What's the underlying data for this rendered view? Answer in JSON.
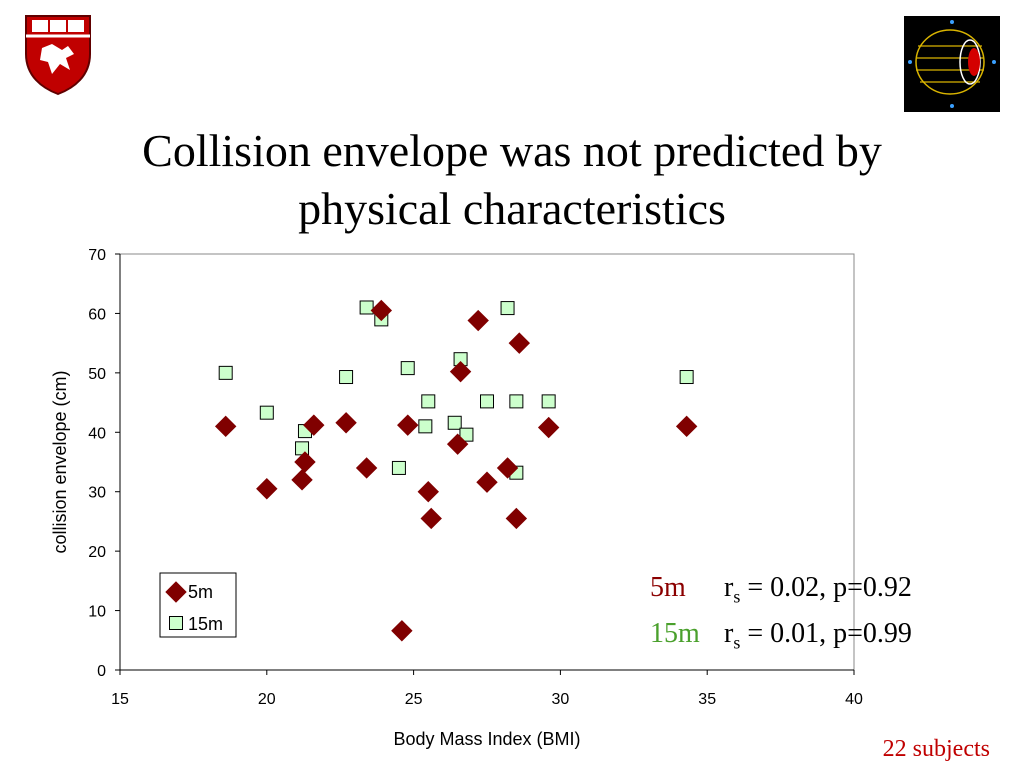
{
  "slide": {
    "title_line1": "Collision envelope was not predicted by",
    "title_line2": "physical characteristics",
    "footnote": "22 subjects",
    "footnote_color": "#c00000"
  },
  "logos": {
    "left": "shield-logo",
    "right": "globe-schematic-logo"
  },
  "stats": {
    "row1": {
      "tag": "5m",
      "tag_color": "#8b0000",
      "r": "r",
      "sub": "s",
      "text": " = 0.02, p=0.92"
    },
    "row2": {
      "tag": "15m",
      "tag_color": "#4aa02c",
      "r": "r",
      "sub": "s",
      "text": " = 0.01, p=0.99"
    }
  },
  "chart_data": {
    "type": "scatter",
    "xlabel": "Body Mass Index (BMI)",
    "ylabel": "collision envelope (cm)",
    "xlim": [
      15,
      40
    ],
    "ylim": [
      0,
      70
    ],
    "xticks": [
      15,
      20,
      25,
      30,
      35,
      40
    ],
    "yticks": [
      0,
      10,
      20,
      30,
      40,
      50,
      60,
      70
    ],
    "grid": false,
    "legend_position": "bottom-left",
    "series": [
      {
        "name": "5m",
        "marker": "diamond",
        "color": "#800000",
        "points": [
          [
            18.6,
            41
          ],
          [
            20.0,
            30.5
          ],
          [
            21.2,
            32
          ],
          [
            21.3,
            35
          ],
          [
            21.6,
            41.2
          ],
          [
            22.7,
            41.6
          ],
          [
            23.4,
            34
          ],
          [
            23.9,
            60.5
          ],
          [
            24.6,
            6.6
          ],
          [
            24.8,
            41.2
          ],
          [
            25.5,
            30
          ],
          [
            25.6,
            25.5
          ],
          [
            26.5,
            38
          ],
          [
            26.6,
            50.2
          ],
          [
            27.2,
            58.8
          ],
          [
            27.5,
            31.6
          ],
          [
            28.2,
            34
          ],
          [
            28.5,
            25.5
          ],
          [
            28.6,
            55
          ],
          [
            29.6,
            40.8
          ],
          [
            34.3,
            41
          ]
        ]
      },
      {
        "name": "15m",
        "marker": "square",
        "color": "#ccffcc",
        "points": [
          [
            18.6,
            50
          ],
          [
            20.0,
            43.3
          ],
          [
            21.2,
            37.3
          ],
          [
            21.3,
            40.2
          ],
          [
            22.7,
            49.3
          ],
          [
            23.4,
            61
          ],
          [
            23.9,
            59
          ],
          [
            24.5,
            34
          ],
          [
            24.8,
            50.8
          ],
          [
            25.4,
            41
          ],
          [
            25.5,
            45.2
          ],
          [
            26.4,
            41.6
          ],
          [
            26.6,
            52.3
          ],
          [
            26.8,
            39.6
          ],
          [
            27.5,
            45.2
          ],
          [
            28.2,
            60.9
          ],
          [
            28.5,
            33.2
          ],
          [
            28.5,
            45.2
          ],
          [
            29.6,
            45.2
          ],
          [
            34.3,
            49.3
          ]
        ]
      }
    ]
  }
}
